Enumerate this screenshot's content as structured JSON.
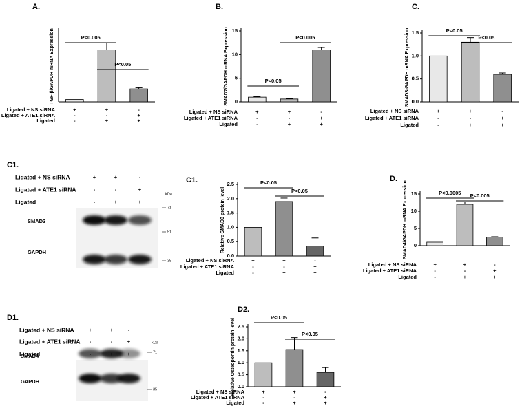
{
  "chart_data": [
    {
      "type": "bar",
      "panel": "A.",
      "ylabel": "TGF-β/GAPDH mRNA Expression",
      "values": [
        1,
        22,
        5.5
      ],
      "errors": [
        0,
        3,
        0.5
      ],
      "colors": [
        "#e8e8e8",
        "#bdbdbd",
        "#8f8f8f"
      ],
      "ylim": [
        0,
        30
      ],
      "yticks": [],
      "conditions": [
        {
          "name": "Ligated + NS siRNA",
          "marks": [
            "+",
            "+",
            "-"
          ]
        },
        {
          "name": "Ligated + ATE1 siRNA",
          "marks": [
            "-",
            "-",
            "+"
          ]
        },
        {
          "name": "Ligated",
          "marks": [
            "-",
            "+",
            "+"
          ]
        }
      ],
      "annotations": [
        "P<0.005",
        "P<0.05"
      ]
    },
    {
      "type": "bar",
      "panel": "B.",
      "ylabel": "SMAD7/GAPDH mRNA Expression",
      "values": [
        1,
        0.6,
        11
      ],
      "errors": [
        0.1,
        0.1,
        0.5
      ],
      "colors": [
        "#e8e8e8",
        "#bdbdbd",
        "#8f8f8f"
      ],
      "ylim": [
        0,
        15
      ],
      "yticks": [
        0,
        5,
        10,
        15
      ],
      "conditions": [
        {
          "name": "Ligated + NS siRNA",
          "marks": [
            "+",
            "+",
            "-"
          ]
        },
        {
          "name": "Ligated + ATE1 siRNA",
          "marks": [
            "-",
            "-",
            "+"
          ]
        },
        {
          "name": "Ligated",
          "marks": [
            "-",
            "+",
            "+"
          ]
        }
      ],
      "annotations": [
        "P<0.05",
        "P<0.005"
      ]
    },
    {
      "type": "bar",
      "panel": "C.",
      "ylabel": "SMAD3/GAPDH mRNA Expression",
      "values": [
        1.0,
        1.3,
        0.6
      ],
      "errors": [
        0,
        0.1,
        0.03
      ],
      "colors": [
        "#e8e8e8",
        "#bdbdbd",
        "#8f8f8f"
      ],
      "ylim": [
        0,
        1.5
      ],
      "yticks": [
        {
          "value": 0,
          "label": "0.0"
        },
        0.5,
        {
          "value": 1,
          "label": "1.0"
        },
        1.5
      ],
      "conditions": [
        {
          "name": "Ligated + NS siRNA",
          "marks": [
            "+",
            "+",
            "-"
          ]
        },
        {
          "name": "Ligated + ATE1 siRNA",
          "marks": [
            "-",
            "-",
            "+"
          ]
        },
        {
          "name": "Ligated",
          "marks": [
            "-",
            "+",
            "+"
          ]
        }
      ],
      "annotations": [
        "P<0.05",
        "P<0.05"
      ]
    },
    {
      "type": "bar",
      "panel": "C1.",
      "ylabel": "Relative  SMAD3 protein level",
      "values": [
        1.0,
        1.9,
        0.35
      ],
      "errors": [
        0,
        0.12,
        0.28
      ],
      "colors": [
        "#bdbdbd",
        "#8f8f8f",
        "#666666"
      ],
      "ylim": [
        0,
        2.5
      ],
      "yticks": [
        {
          "value": 0,
          "label": "0.0"
        },
        0.5,
        {
          "value": 1,
          "label": "1.0"
        },
        1.5,
        {
          "value": 2,
          "label": "2.0"
        },
        2.5
      ],
      "conditions": [
        {
          "name": "Ligated + NS siRNA",
          "marks": [
            "+",
            "+",
            "-"
          ]
        },
        {
          "name": "Ligated + ATE1 siRNA",
          "marks": [
            "-",
            "-",
            "+"
          ]
        },
        {
          "name": "Ligated",
          "marks": [
            "-",
            "+",
            "+"
          ]
        }
      ],
      "annotations": [
        "P<0.05",
        "P<0.05"
      ]
    },
    {
      "type": "bar",
      "panel": "D.",
      "ylabel": "SMAD4/GAPDH mRNA Expression",
      "values": [
        1,
        12,
        2.5
      ],
      "errors": [
        0,
        0.7,
        0.1
      ],
      "colors": [
        "#e8e8e8",
        "#bdbdbd",
        "#8f8f8f"
      ],
      "ylim": [
        0,
        15
      ],
      "yticks": [
        0,
        5,
        10,
        15
      ],
      "conditions": [
        {
          "name": "Ligated + NS siRNA",
          "marks": [
            "+",
            "+",
            "-"
          ]
        },
        {
          "name": "Ligated + ATE1 siRNA",
          "marks": [
            "-",
            "-",
            "+"
          ]
        },
        {
          "name": "Ligated",
          "marks": [
            "-",
            "+",
            "+"
          ]
        }
      ],
      "annotations": [
        "P<0.0005",
        "P<0.005"
      ]
    },
    {
      "type": "bar",
      "panel": "D2.",
      "ylabel": "Relative Osteopontin protein level",
      "values": [
        1.0,
        1.55,
        0.6
      ],
      "errors": [
        0,
        0.5,
        0.2
      ],
      "colors": [
        "#bdbdbd",
        "#8f8f8f",
        "#666666"
      ],
      "ylim": [
        0,
        2.5
      ],
      "yticks": [
        {
          "value": 0,
          "label": "0.0"
        },
        0.5,
        {
          "value": 1,
          "label": "1.0"
        },
        1.5,
        {
          "value": 2,
          "label": "2.0"
        },
        2.5
      ],
      "conditions": [
        {
          "name": "Ligated + NS siRNA",
          "marks": [
            "+",
            "+",
            "-"
          ]
        },
        {
          "name": "Ligated + ATE1 siRNA",
          "marks": [
            "-",
            "-",
            "+"
          ]
        },
        {
          "name": "Ligated",
          "marks": [
            "-",
            "+",
            "+"
          ]
        }
      ],
      "annotations": [
        "P<0.05",
        "P<0.05"
      ]
    }
  ],
  "blots": [
    {
      "panel": "C1.",
      "conditions": [
        {
          "name": "Ligated + NS siRNA",
          "marks": [
            "+",
            "+",
            "-"
          ]
        },
        {
          "name": "Ligated + ATE1 siRNA",
          "marks": [
            "-",
            "-",
            "+"
          ]
        },
        {
          "name": "Ligated",
          "marks": [
            "-",
            "+",
            "+"
          ]
        }
      ],
      "bands": [
        "SMAD3",
        "GAPDH"
      ],
      "markers": [
        "kDa",
        "71",
        "51",
        "35"
      ]
    },
    {
      "panel": "D1.",
      "conditions": [
        {
          "name": "Ligated + NS siRNA",
          "marks": [
            "+",
            "+",
            "-"
          ]
        },
        {
          "name": "Ligated + ATE1 siRNA",
          "marks": [
            "-",
            "-",
            "+"
          ]
        },
        {
          "name": "Ligated",
          "marks": [
            "-",
            "+",
            "+"
          ]
        }
      ],
      "bands": [
        "SMAD4",
        "GAPDH"
      ],
      "markers": [
        "kDa",
        "71",
        "35"
      ]
    }
  ]
}
